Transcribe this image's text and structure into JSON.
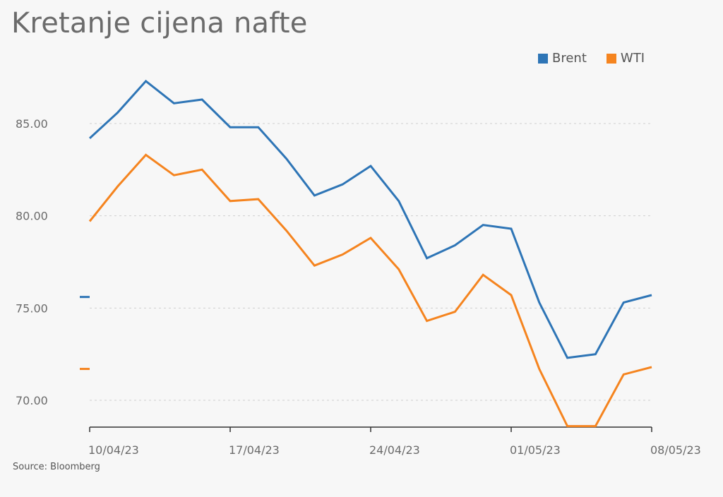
{
  "title": "Kretanje cijena nafte",
  "source": "Source: Bloomberg",
  "colors": {
    "brent": "#2e75b6",
    "wti": "#f5841f",
    "grid": "#cfcfcf",
    "axis": "#333333"
  },
  "chart_data": {
    "type": "line",
    "title": "Kretanje cijena nafte",
    "xlabel": "",
    "ylabel": "",
    "ylim": [
      68.5,
      89.5
    ],
    "x": [
      "10/04/23",
      "11/04/23",
      "12/04/23",
      "13/04/23",
      "14/04/23",
      "17/04/23",
      "18/04/23",
      "19/04/23",
      "20/04/23",
      "21/04/23",
      "24/04/23",
      "25/04/23",
      "26/04/23",
      "27/04/23",
      "28/04/23",
      "01/05/23",
      "02/05/23",
      "03/05/23",
      "04/05/23",
      "05/05/23",
      "08/05/23"
    ],
    "x_tick_labels": [
      "10/04/23",
      "17/04/23",
      "24/04/23",
      "01/05/23",
      "08/05/23"
    ],
    "y_ticks": [
      70,
      75,
      80,
      85
    ],
    "y_tick_labels": [
      "70.00",
      "75.00",
      "80.00",
      "85.00"
    ],
    "grid": true,
    "legend": "top-right",
    "series": [
      {
        "name": "Brent",
        "color": "#2e75b6",
        "values": [
          84.2,
          85.6,
          87.3,
          86.1,
          86.3,
          84.8,
          84.8,
          83.1,
          81.1,
          81.7,
          82.7,
          80.8,
          77.7,
          78.4,
          79.5,
          79.3,
          75.3,
          72.3,
          72.5,
          75.3,
          75.7
        ],
        "last_value_marker": 75.6
      },
      {
        "name": "WTI",
        "color": "#f5841f",
        "values": [
          79.7,
          81.6,
          83.3,
          82.2,
          82.5,
          80.8,
          80.9,
          79.2,
          77.3,
          77.9,
          78.8,
          77.1,
          74.3,
          74.8,
          76.8,
          75.7,
          71.7,
          68.6,
          68.6,
          71.4,
          71.8
        ],
        "last_value_marker": 71.7
      }
    ]
  }
}
